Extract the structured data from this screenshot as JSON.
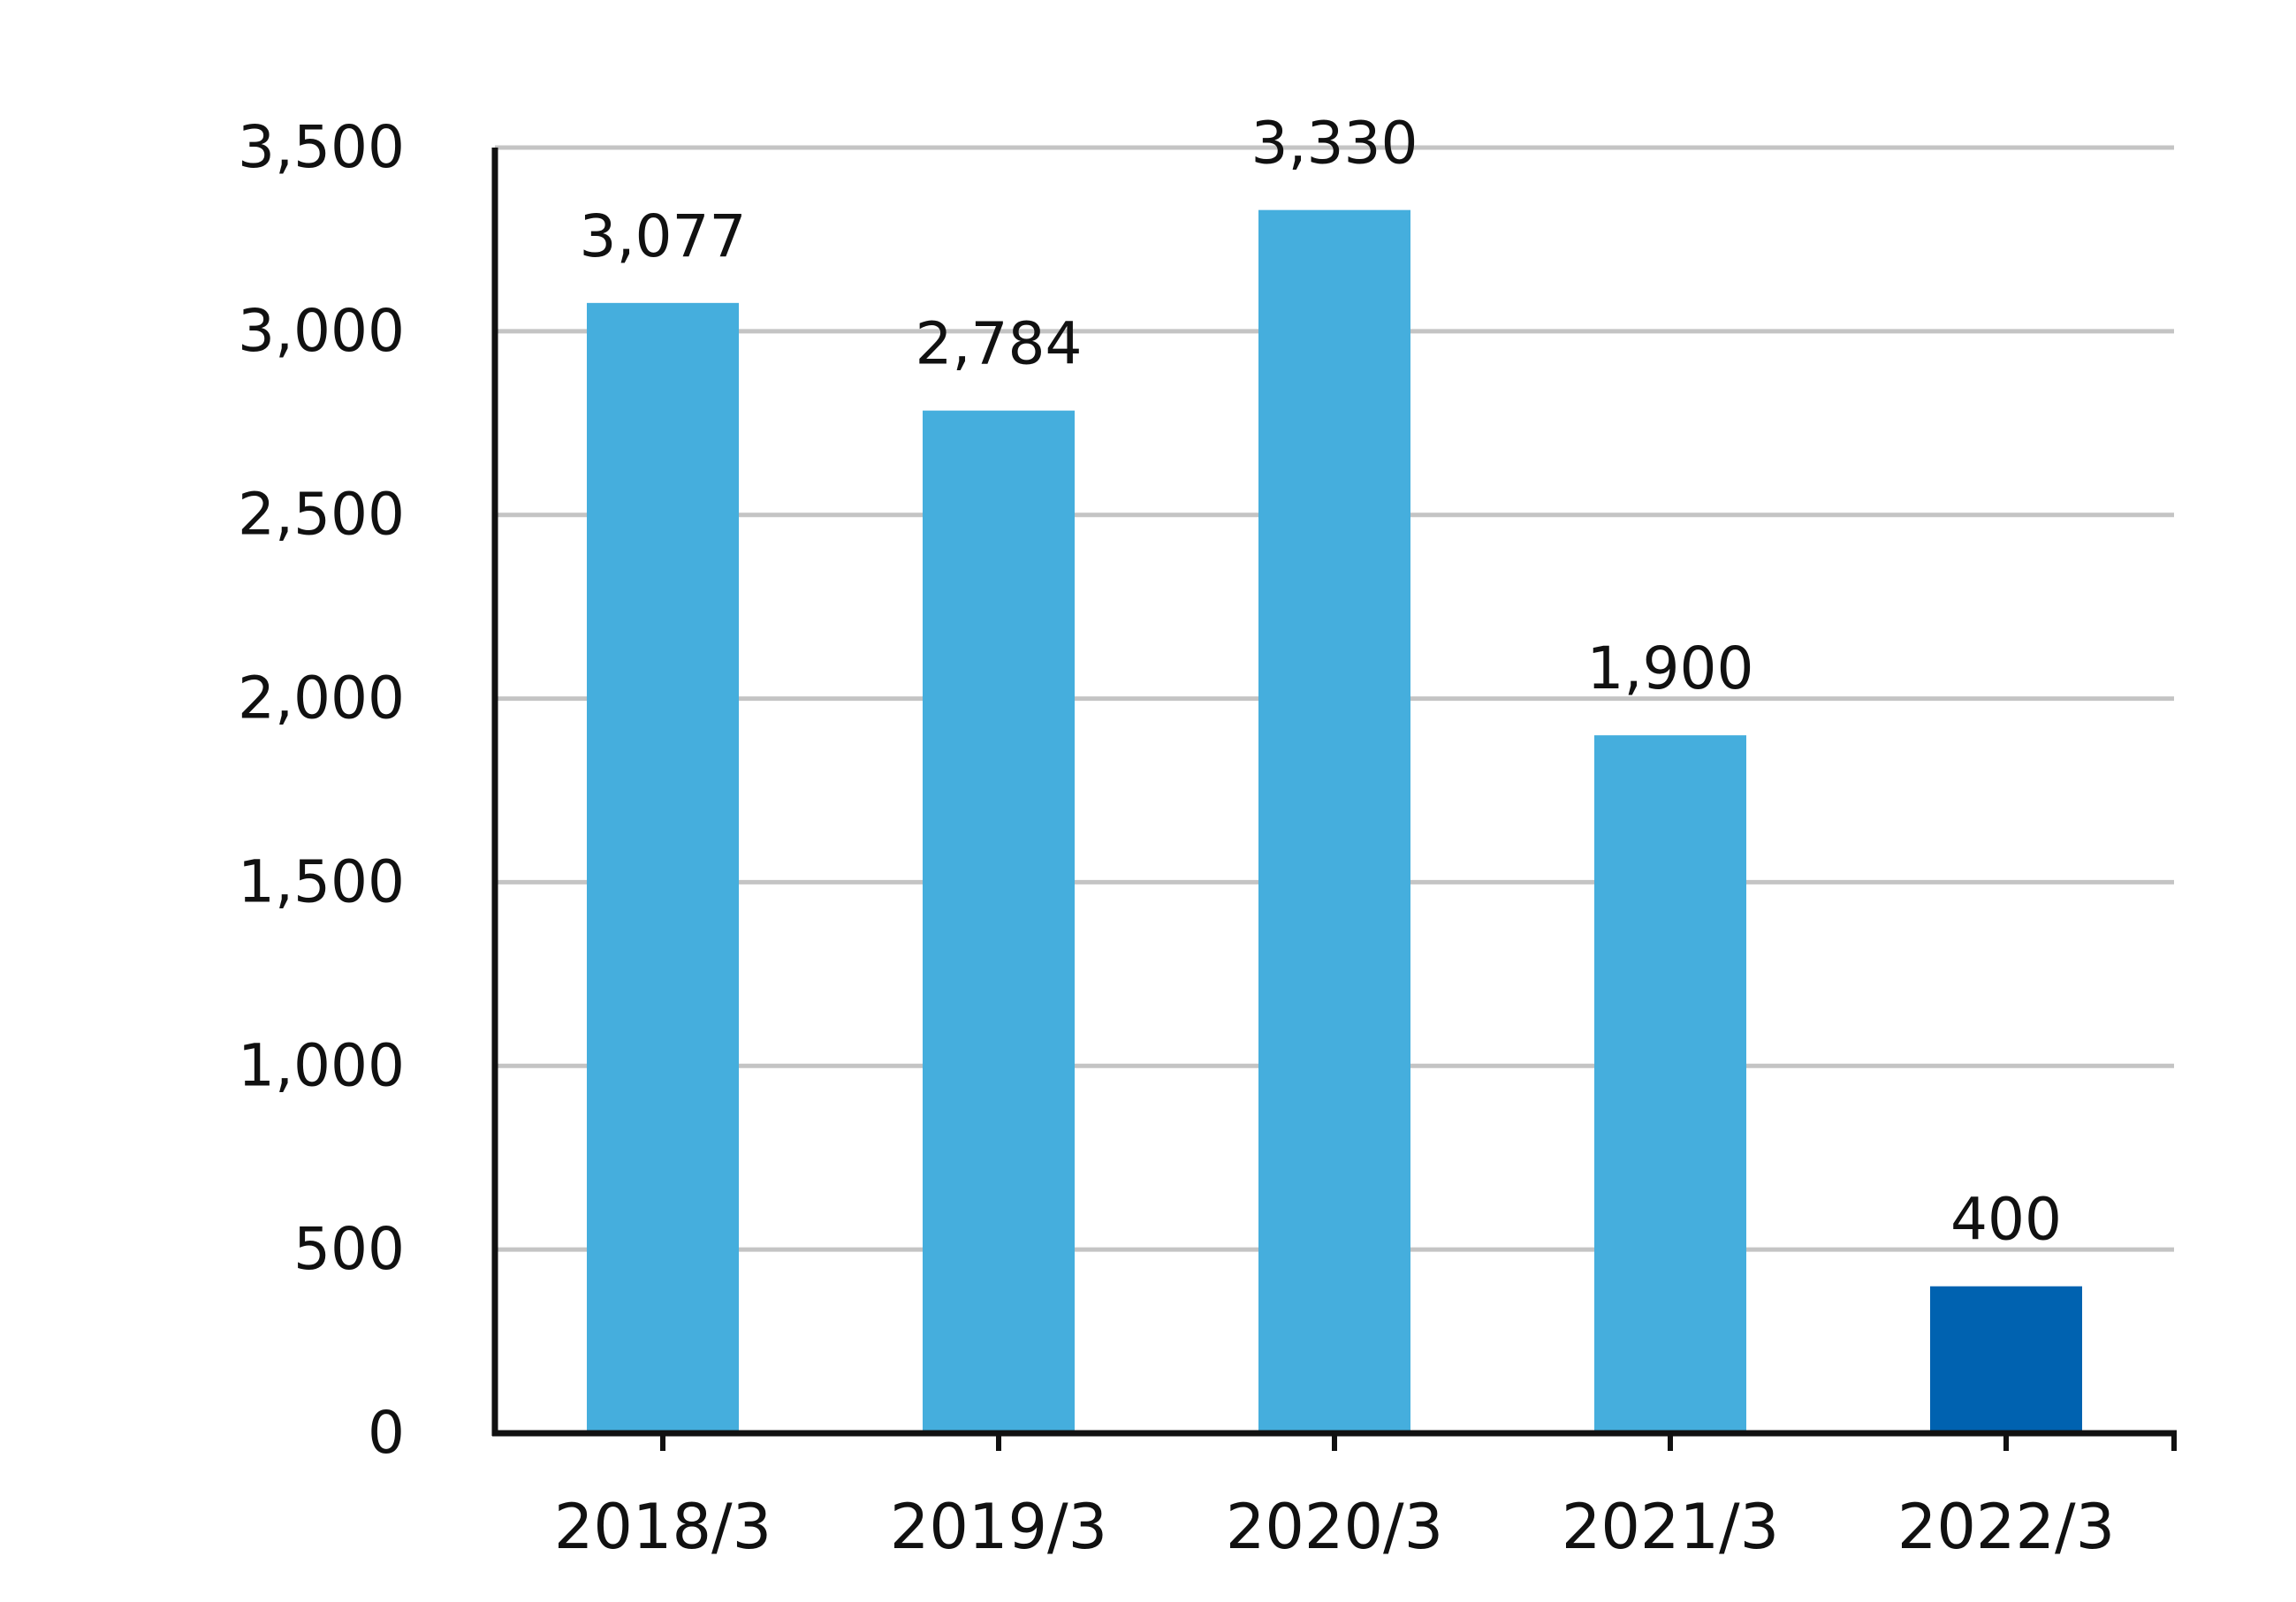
{
  "chart_data": {
    "type": "bar",
    "categories": [
      "2018/3",
      "2019/3",
      "2020/3",
      "2021/3",
      "2022/3"
    ],
    "values": [
      3077,
      2784,
      3330,
      1900,
      400
    ],
    "value_labels": [
      "3,077",
      "2,784",
      "3,330",
      "1,900",
      "400"
    ],
    "ylim": [
      0,
      3500
    ],
    "yticks": [
      0,
      500,
      1000,
      1500,
      2000,
      2500,
      3000,
      3500
    ],
    "ytick_labels": [
      "0",
      "500",
      "1,000",
      "1,500",
      "2,000",
      "2,500",
      "3,000",
      "3,500"
    ],
    "grid": true,
    "colors": {
      "bar": "#45AEDD",
      "highlight_bar": "#0062B0",
      "grid": "#C4C4C4",
      "axis": "#111111"
    },
    "highlight_index": 4
  }
}
